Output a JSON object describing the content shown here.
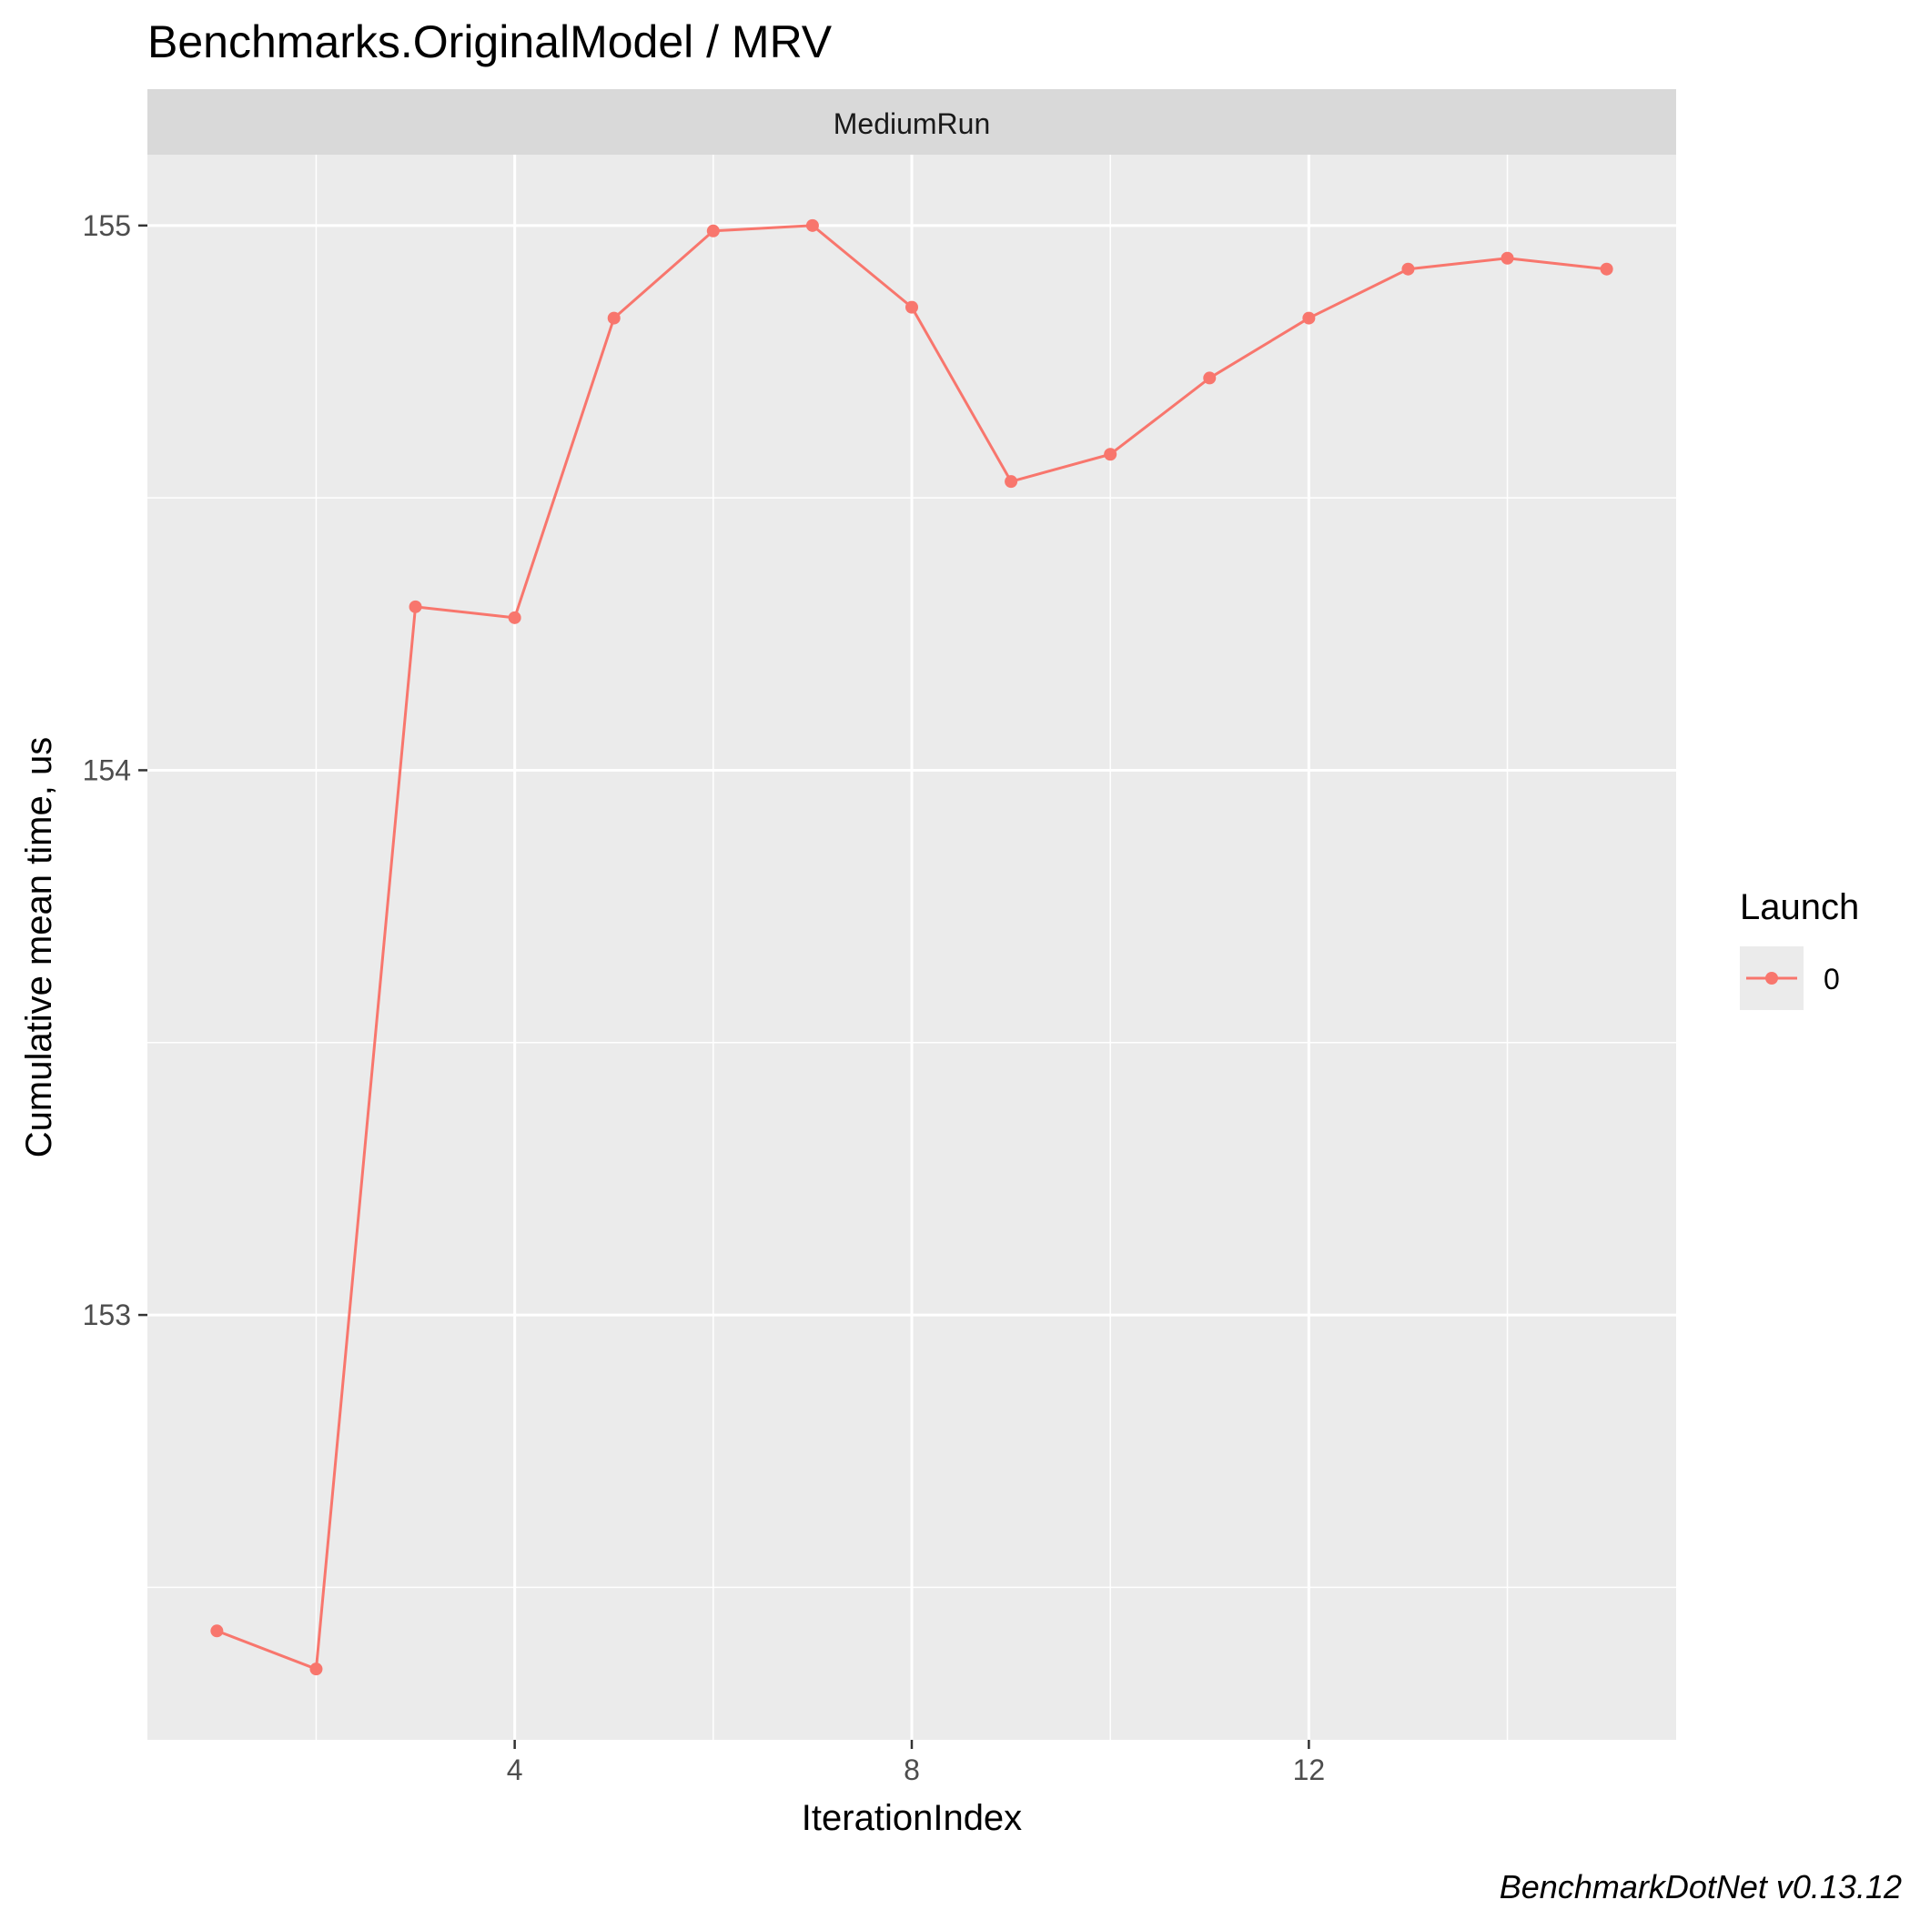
{
  "chart_data": {
    "type": "line",
    "title": "Benchmarks.OriginalModel / MRV",
    "facet_label": "MediumRun",
    "xlabel": "IterationIndex",
    "ylabel": "Cumulative mean time, us",
    "caption": "BenchmarkDotNet v0.13.12",
    "xlim": [
      0.3,
      15.7
    ],
    "ylim": [
      152.22,
      155.13
    ],
    "x_ticks": [
      4,
      8,
      12
    ],
    "x_tick_labels": [
      "4",
      "8",
      "12"
    ],
    "y_ticks": [
      153,
      154,
      155
    ],
    "y_tick_labels": [
      "153",
      "154",
      "155"
    ],
    "grid": true,
    "legend": {
      "title": "Launch",
      "placement": "right",
      "entries": [
        "0"
      ]
    },
    "series": [
      {
        "name": "0",
        "color": "#F8766D",
        "x": [
          1,
          2,
          3,
          4,
          5,
          6,
          7,
          8,
          9,
          10,
          11,
          12,
          13,
          14,
          15
        ],
        "y": [
          152.42,
          152.35,
          154.3,
          154.28,
          154.83,
          154.99,
          155.0,
          154.85,
          154.53,
          154.58,
          154.72,
          154.83,
          154.92,
          154.94,
          154.92
        ]
      }
    ]
  }
}
